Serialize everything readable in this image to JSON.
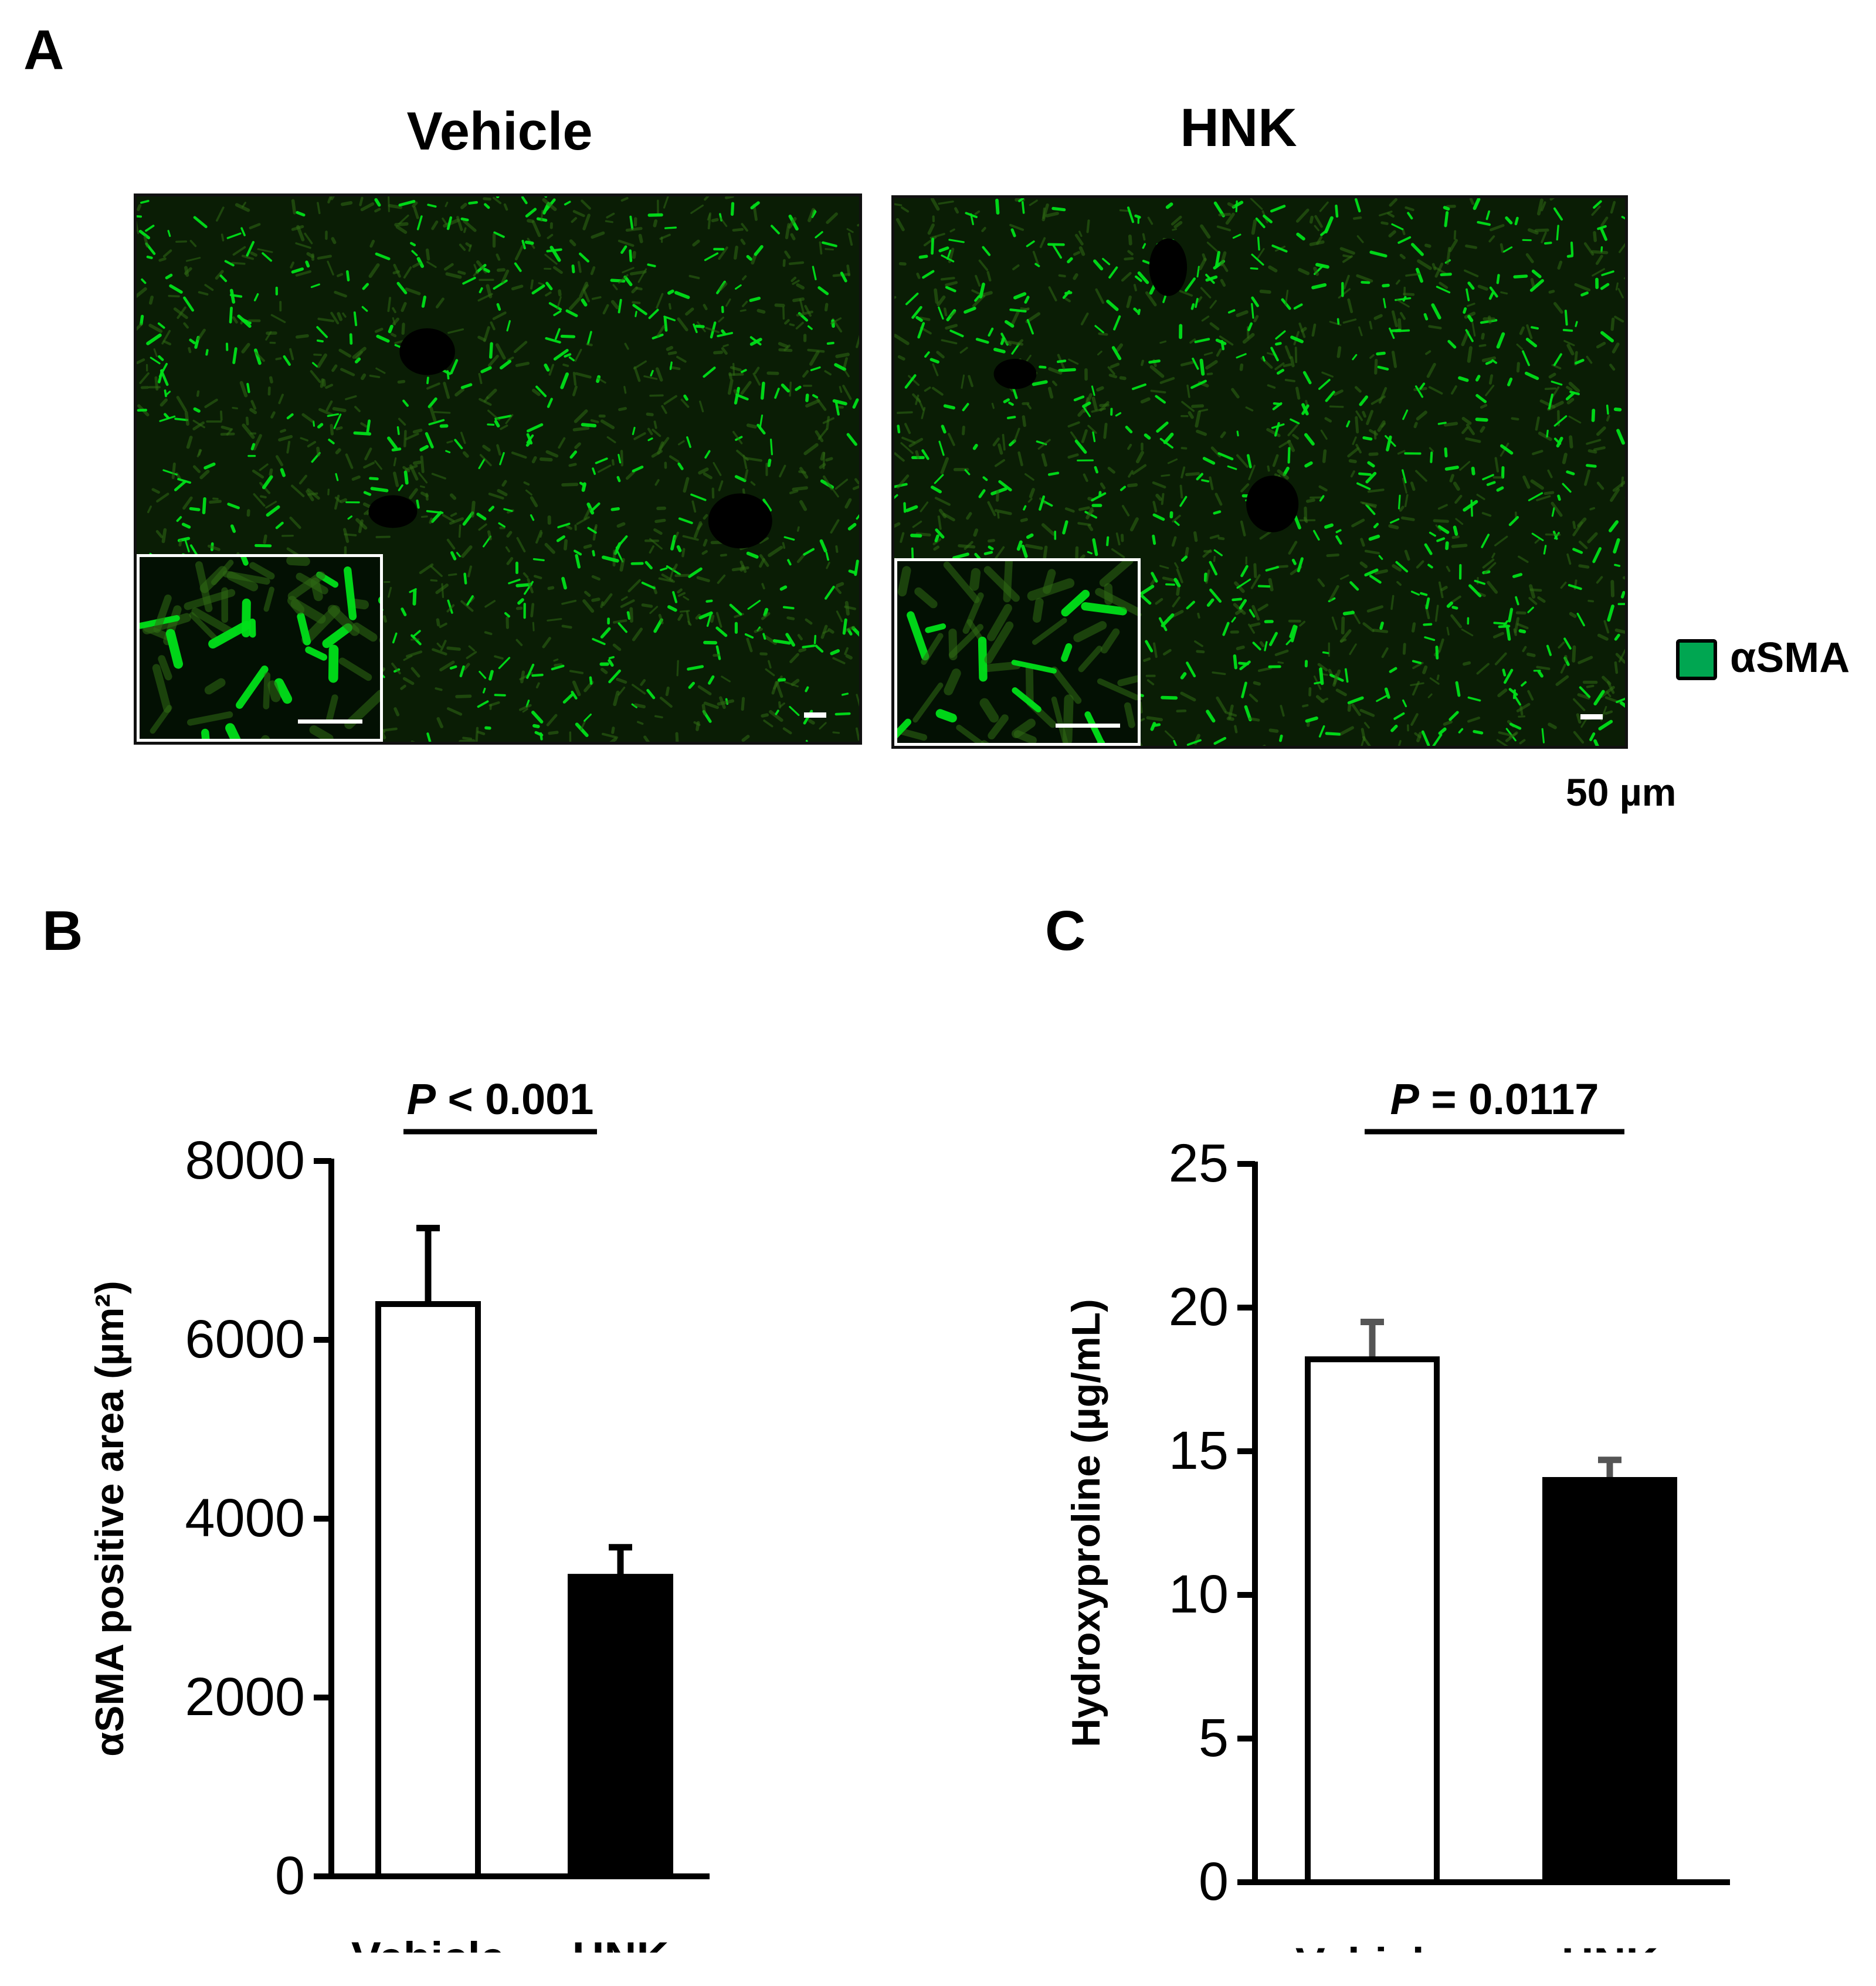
{
  "figure": {
    "panel_a": {
      "letter": "A",
      "images": [
        {
          "title": "Vehicle"
        },
        {
          "title": "HNK"
        }
      ],
      "legend": {
        "label": "αSMA",
        "color": "#00a651"
      },
      "scale_label": "50 µm",
      "stain_color": "#00e01a"
    },
    "panel_b": {
      "letter": "B"
    },
    "panel_c": {
      "letter": "C"
    }
  },
  "chart_data": [
    {
      "type": "bar",
      "categories": [
        "Vehicle",
        "HNK"
      ],
      "values": [
        6400,
        3350
      ],
      "errors": [
        850,
        330
      ],
      "bar_fills": [
        "#ffffff",
        "#000000"
      ],
      "ylabel": "αSMA positive area (µm²)",
      "xlabel": "",
      "ylim": [
        0,
        8000
      ],
      "yticks": [
        "0",
        "2000",
        "4000",
        "6000",
        "8000"
      ],
      "significance": {
        "prefix": "P",
        "text": " < 0.001"
      }
    },
    {
      "type": "bar",
      "categories": [
        "Vehicle",
        "HNK"
      ],
      "values": [
        18.2,
        14.0
      ],
      "errors": [
        1.3,
        0.7
      ],
      "bar_fills": [
        "#ffffff",
        "#000000"
      ],
      "ylabel": "Hydroxyproline  (µg/mL)",
      "xlabel": "",
      "ylim": [
        0,
        25
      ],
      "yticks": [
        "0",
        "5",
        "10",
        "15",
        "20",
        "25"
      ],
      "significance": {
        "prefix": "P",
        "text": " = 0.0117"
      }
    }
  ]
}
